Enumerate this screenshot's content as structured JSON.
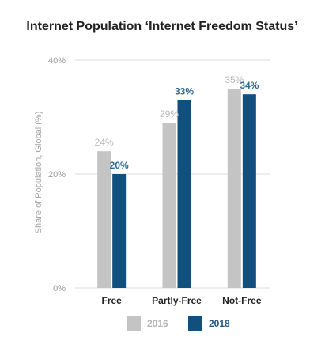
{
  "chart_data": {
    "type": "bar",
    "title": "Internet Population ‘Internet Freedom Status’",
    "ylabel": "Share of Population, Global (%)",
    "xlabel": "",
    "categories": [
      "Free",
      "Partly-Free",
      "Not-Free"
    ],
    "series": [
      {
        "name": "2016",
        "values": [
          24,
          29,
          35
        ],
        "labels": [
          "24%",
          "29%",
          "35%"
        ],
        "color": "#c4c4c4",
        "label_color": "#b8b8b8"
      },
      {
        "name": "2018",
        "values": [
          20,
          33,
          34
        ],
        "labels": [
          "20%",
          "33%",
          "34%"
        ],
        "color": "#11507e",
        "label_color": "#2d6a96"
      }
    ],
    "ylim": [
      0,
      40
    ],
    "yticks": [
      0,
      20,
      40
    ],
    "ytick_labels": [
      "0%",
      "20%",
      "40%"
    ],
    "grid": true,
    "legend_position": "bottom"
  }
}
